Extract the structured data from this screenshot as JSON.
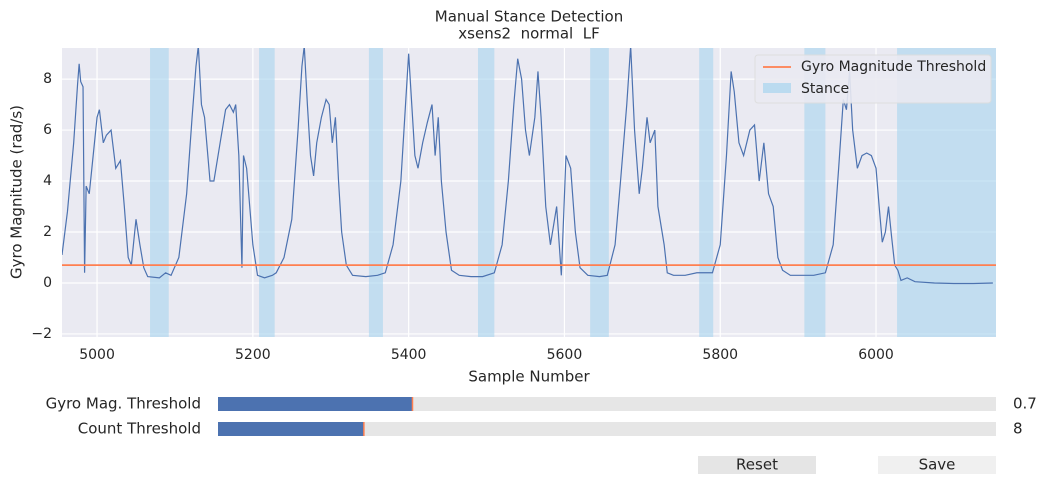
{
  "chart_data": {
    "type": "line",
    "title": "Manual Stance Detection",
    "subtitle": "xsens2  normal  LF",
    "xlabel": "Sample Number",
    "ylabel": "Gyro Magnitude (rad/s)",
    "xlim": [
      4955,
      6154
    ],
    "ylim": [
      -2.12,
      9.22
    ],
    "xticks": [
      5000,
      5200,
      5400,
      5600,
      5800,
      6000
    ],
    "yticks": [
      {
        "value": -2,
        "label": "−2"
      },
      0,
      2,
      4,
      6,
      8
    ],
    "grid": true,
    "legend": "upper right",
    "x": [
      4955,
      4962,
      4970,
      4975,
      4977,
      4979,
      4982,
      4984,
      4986,
      4990,
      4995,
      5000,
      5003,
      5008,
      5012,
      5018,
      5024,
      5030,
      5035,
      5040,
      5044,
      5050,
      5055,
      5060,
      5065,
      5080,
      5088,
      5095,
      5105,
      5115,
      5122,
      5127,
      5130,
      5134,
      5138,
      5145,
      5150,
      5158,
      5165,
      5170,
      5175,
      5178,
      5182,
      5186,
      5188,
      5192,
      5196,
      5200,
      5206,
      5215,
      5225,
      5230,
      5240,
      5250,
      5258,
      5263,
      5266,
      5270,
      5274,
      5278,
      5282,
      5288,
      5294,
      5298,
      5302,
      5306,
      5310,
      5314,
      5320,
      5328,
      5345,
      5360,
      5370,
      5380,
      5390,
      5396,
      5400,
      5404,
      5408,
      5412,
      5418,
      5424,
      5430,
      5434,
      5438,
      5442,
      5448,
      5455,
      5465,
      5480,
      5495,
      5510,
      5520,
      5528,
      5535,
      5540,
      5545,
      5550,
      5555,
      5562,
      5566,
      5570,
      5576,
      5582,
      5590,
      5596,
      5602,
      5608,
      5614,
      5620,
      5630,
      5645,
      5655,
      5665,
      5672,
      5680,
      5685,
      5690,
      5696,
      5700,
      5706,
      5710,
      5716,
      5720,
      5728,
      5732,
      5740,
      5755,
      5770,
      5790,
      5800,
      5808,
      5814,
      5818,
      5824,
      5830,
      5838,
      5844,
      5850,
      5856,
      5862,
      5868,
      5874,
      5880,
      5890,
      5905,
      5920,
      5935,
      5945,
      5952,
      5958,
      5962,
      5966,
      5970,
      5976,
      5982,
      5988,
      5994,
      6000,
      6004,
      6008,
      6012,
      6016,
      6020,
      6024,
      6028,
      6032,
      6040,
      6050,
      6075,
      6100,
      6125,
      6150
    ],
    "series": [
      {
        "color": "#4c72b0",
        "values": [
          1.1,
          2.8,
          5.5,
          7.8,
          8.6,
          7.9,
          7.7,
          0.4,
          3.8,
          3.5,
          5,
          6.5,
          6.8,
          5.5,
          5.8,
          6,
          4.5,
          4.8,
          3,
          1,
          0.7,
          2.5,
          1.5,
          0.6,
          0.25,
          0.2,
          0.4,
          0.3,
          1,
          3.5,
          6.5,
          8.5,
          9.3,
          7,
          6.5,
          4,
          4,
          5.5,
          6.8,
          7,
          6.7,
          7,
          5,
          0.6,
          5,
          4.5,
          3,
          1.5,
          0.3,
          0.2,
          0.3,
          0.4,
          1,
          2.5,
          6,
          8.5,
          9.3,
          7,
          5,
          4.2,
          5.5,
          6.5,
          7.2,
          7,
          5.5,
          6.5,
          4,
          2,
          0.7,
          0.3,
          0.25,
          0.3,
          0.4,
          1.5,
          4,
          7,
          9,
          7,
          5,
          4.5,
          5.5,
          6.3,
          7,
          5,
          6.5,
          4,
          2,
          0.5,
          0.3,
          0.25,
          0.25,
          0.4,
          1.5,
          4,
          7,
          8.8,
          8,
          6,
          5,
          6.5,
          8.3,
          6.5,
          3,
          1.5,
          3,
          0.3,
          5,
          4.5,
          2,
          0.6,
          0.3,
          0.25,
          0.3,
          1.5,
          4,
          7,
          9.3,
          6,
          3.5,
          4.5,
          6.5,
          5.5,
          6,
          3,
          1.5,
          0.4,
          0.3,
          0.3,
          0.4,
          0.4,
          1.5,
          5,
          8.3,
          7.5,
          5.5,
          5,
          6,
          6.2,
          4,
          5.5,
          3.5,
          3,
          1,
          0.5,
          0.3,
          0.3,
          0.3,
          0.4,
          1.5,
          4.5,
          7.2,
          6.8,
          8.3,
          6,
          4.5,
          5,
          5.1,
          5,
          4.5,
          3,
          1.6,
          2,
          3,
          1.8,
          0.7,
          0.5,
          0.1,
          0.2,
          0.05,
          0,
          -0.02,
          -0.02,
          0
        ]
      }
    ],
    "threshold": {
      "name": "Gyro Magnitude Threshold",
      "value": 0.7,
      "color": "#ff7f50"
    },
    "stance": {
      "name": "Stance",
      "color": "#a6d4ef",
      "spans": [
        [
          5068,
          5092
        ],
        [
          5208,
          5228
        ],
        [
          5349,
          5367
        ],
        [
          5489,
          5510
        ],
        [
          5633,
          5657
        ],
        [
          5773,
          5791
        ],
        [
          5908,
          5935
        ],
        [
          6027,
          6154
        ]
      ]
    }
  },
  "sliders": [
    {
      "label": "Gyro Mag. Threshold",
      "value": 0.7,
      "min": 0.1,
      "max": 2.5
    },
    {
      "label": "Count Threshold",
      "value": 8,
      "min": 2,
      "max": 34
    }
  ],
  "buttons": [
    {
      "label": "Reset"
    },
    {
      "label": "Save"
    }
  ]
}
